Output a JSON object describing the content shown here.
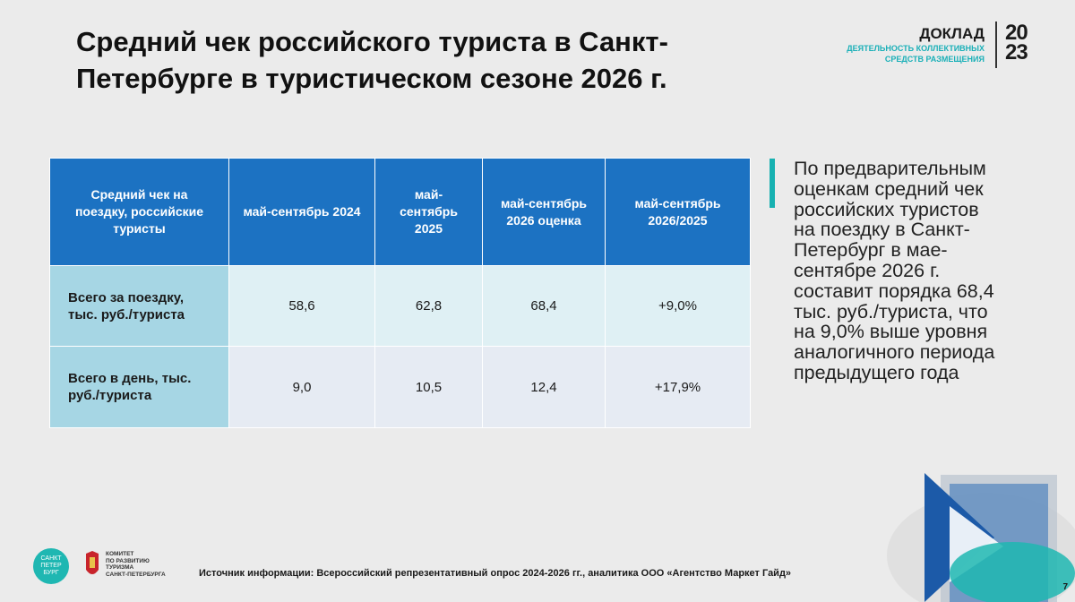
{
  "header": {
    "title_lines": [
      "Средний чек российского туриста в Санкт-",
      "Петербурге в туристическом сезоне 2026 г."
    ],
    "report": "ДОКЛАД",
    "report_subtitle_lines": [
      "ДЕЯТЕЛЬНОСТЬ КОЛЛЕКТИВНЫХ",
      "СРЕДСТВ РАЗМЕЩЕНИЯ"
    ],
    "logo_lines": [
      "20",
      "23"
    ]
  },
  "table": {
    "header": [
      "Средний чек на поездку, российские туристы",
      "май-сентябрь 2024",
      "май-сентябрь 2025",
      "май-сентябрь 2026 оценка",
      "май-сентябрь 2026/2025"
    ],
    "rows": [
      [
        "Всего за поездку, тыс. руб./туриста",
        "58,6",
        "62,8",
        "68,4",
        "+9,0%"
      ],
      [
        "Всего в день, тыс. руб./туриста",
        "9,0",
        "10,5",
        "12,4",
        "+17,9%"
      ]
    ]
  },
  "side_text_lines": [
    "По предварительным",
    "оценкам средний чек",
    "российских туристов",
    "на поездку в Санкт-",
    "Петербург в мае-",
    "сентябре 2026 г.",
    "составит порядка 68,4",
    "тыс. руб./туриста, что",
    "на 9,0% выше уровня",
    "аналогичного периода",
    "предыдущего года"
  ],
  "footer": {
    "city_logo_lines": [
      "САНКТ",
      "ПЕТЕР",
      "БУРГ"
    ],
    "committee_lines": [
      "КОМИТЕТ",
      "ПО РАЗВИТИЮ",
      "ТУРИЗМА",
      "САНКТ-ПЕТЕРБУРГА"
    ],
    "source": "Источник информации: Всероссийский репрезентативный опрос 2024-2026 гг., аналитика ООО «Агентство Маркет Гайд»",
    "page_number": "7"
  }
}
